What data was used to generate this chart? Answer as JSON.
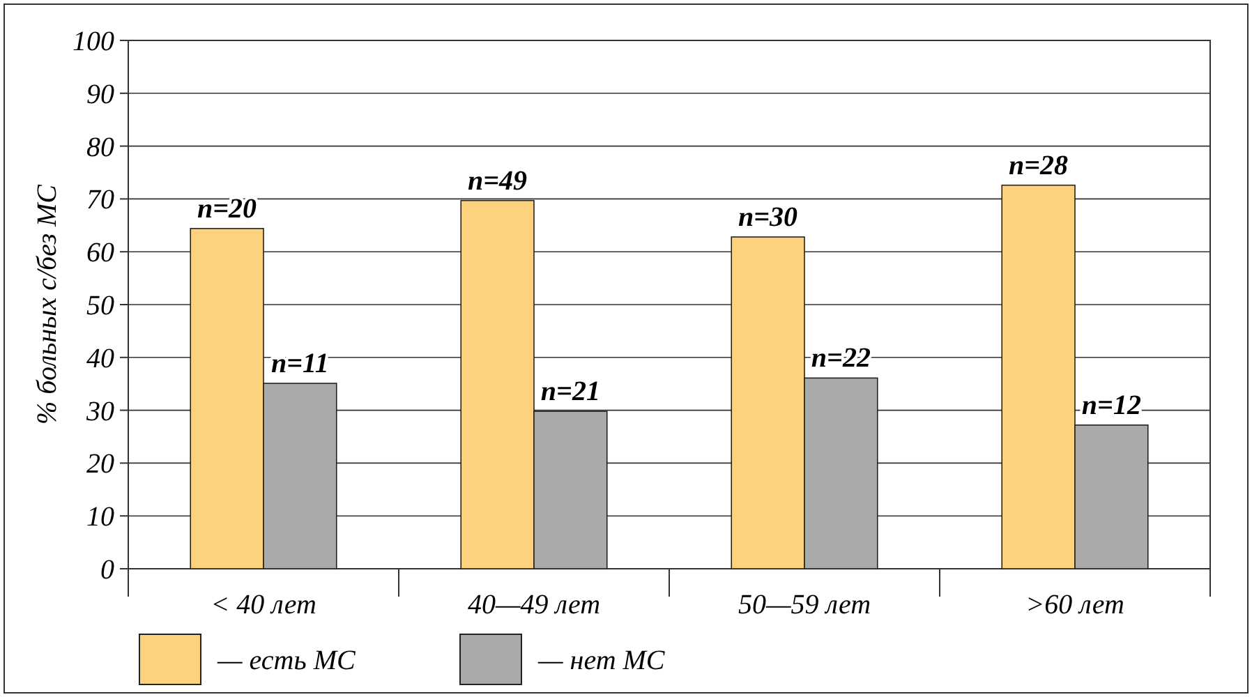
{
  "chart_data": {
    "type": "bar",
    "ylabel": "% больных с/без МС",
    "categories": [
      "< 40 лет",
      "40—49 лет",
      "50—59 лет",
      ">60 лет"
    ],
    "series": [
      {
        "name": "— есть МС",
        "color": "#fdd27f",
        "values": [
          64.4,
          69.7,
          62.8,
          72.6
        ]
      },
      {
        "name": "— нет МС",
        "color": "#a8aba7",
        "values": [
          35.1,
          29.8,
          36.1,
          27.2
        ]
      }
    ],
    "annotations": [
      {
        "text": "n=20",
        "x": "< 40 лет",
        "y": 64.4
      },
      {
        "text": "n=49",
        "x": "40—49 лет",
        "y": 69.7
      },
      {
        "text": "n=30",
        "x": "50—59 лет",
        "y": 62.8
      },
      {
        "text": "n=28",
        "x": ">60 лет",
        "y": 72.6
      },
      {
        "text": "n=11",
        "x": "< 40 лет",
        "y": 35.1
      },
      {
        "text": "n=21",
        "x": "40—49 лет",
        "y": 29.8
      },
      {
        "text": "n=22",
        "x": "50—59 лет",
        "y": 36.1
      },
      {
        "text": "n=12",
        "x": ">60 лет",
        "y": 27.2
      }
    ],
    "ylim": [
      0,
      100
    ],
    "yticks": [
      0,
      10,
      20,
      30,
      40,
      50,
      60,
      70,
      80,
      90,
      100
    ],
    "grid": "y",
    "legend": "bottom"
  }
}
